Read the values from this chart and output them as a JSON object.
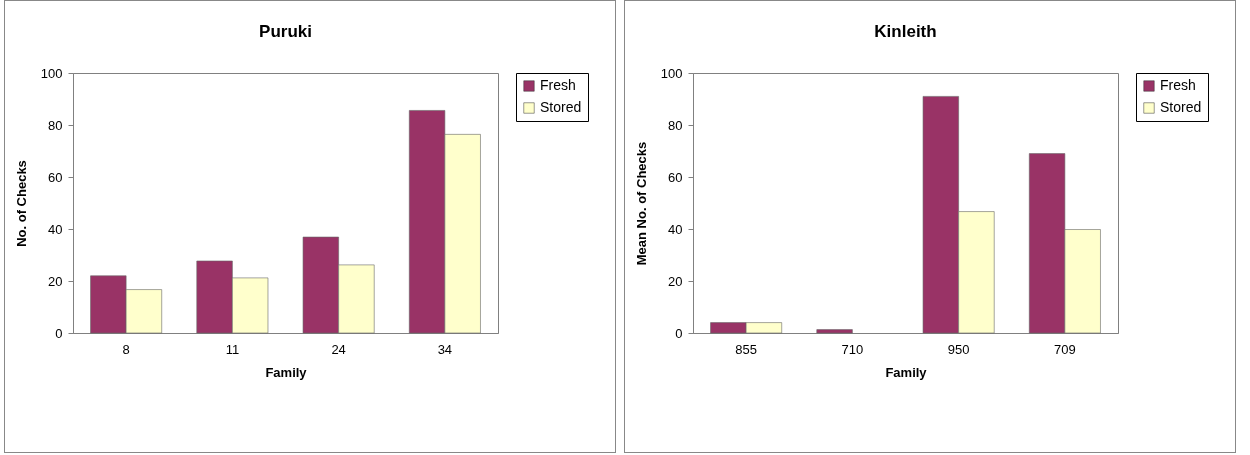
{
  "chart_data": [
    {
      "type": "bar",
      "title": "Puruki",
      "xlabel": "Family",
      "ylabel": "No. of Checks",
      "categories": [
        "8",
        "11",
        "24",
        "34"
      ],
      "series": [
        {
          "name": "Fresh",
          "color": "#993366",
          "values": [
            22,
            27.7,
            36.9,
            85.6
          ]
        },
        {
          "name": "Stored",
          "color": "#ffffcc",
          "values": [
            16.7,
            21.2,
            26.2,
            76.4
          ]
        }
      ],
      "ylim": [
        0,
        100
      ],
      "yticks": [
        0,
        20,
        40,
        60,
        80,
        100
      ],
      "grid": false,
      "legend": "right"
    },
    {
      "type": "bar",
      "title": "Kinleith",
      "xlabel": "Family",
      "ylabel": "Mean No. of Checks",
      "categories": [
        "855",
        "710",
        "950",
        "709"
      ],
      "series": [
        {
          "name": "Fresh",
          "color": "#993366",
          "values": [
            4,
            1.3,
            91,
            69
          ]
        },
        {
          "name": "Stored",
          "color": "#ffffcc",
          "values": [
            4,
            null,
            46.7,
            39.8
          ]
        }
      ],
      "ylim": [
        0,
        100
      ],
      "yticks": [
        0,
        20,
        40,
        60,
        80,
        100
      ],
      "grid": false,
      "legend": "right"
    }
  ]
}
